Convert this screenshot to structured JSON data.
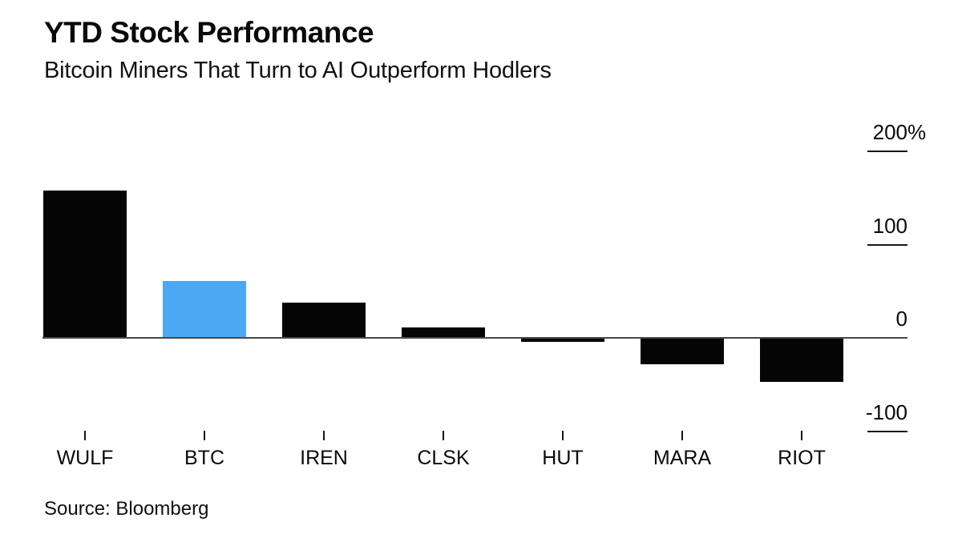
{
  "header": {
    "title": "YTD Stock Performance",
    "subtitle": "Bitcoin Miners That Turn to AI Outperform Hodlers"
  },
  "footer": {
    "source": "Source: Bloomberg"
  },
  "colors": {
    "bar_default": "#050505",
    "bar_highlight": "#4BA8F2",
    "axis": "#474747",
    "tick": "#161616"
  },
  "chart_data": {
    "type": "bar",
    "title": "YTD Stock Performance",
    "subtitle": "Bitcoin Miners That Turn to AI Outperform Hodlers",
    "categories": [
      "WULF",
      "BTC",
      "IREN",
      "CLSK",
      "HUT",
      "MARA",
      "RIOT"
    ],
    "values": [
      158,
      61,
      38,
      11,
      -4,
      -28,
      -47
    ],
    "unit": "%",
    "highlight_category": "BTC",
    "xlabel": "",
    "ylabel": "",
    "ylim": [
      -130,
      230
    ],
    "y_ticks": [
      200,
      100,
      0,
      -100
    ],
    "y_tick_labels": [
      "200",
      "100",
      "0",
      "-100"
    ],
    "y_tick_unit_on": "200",
    "grid": "off",
    "legend": "none",
    "axis_side": "right"
  }
}
